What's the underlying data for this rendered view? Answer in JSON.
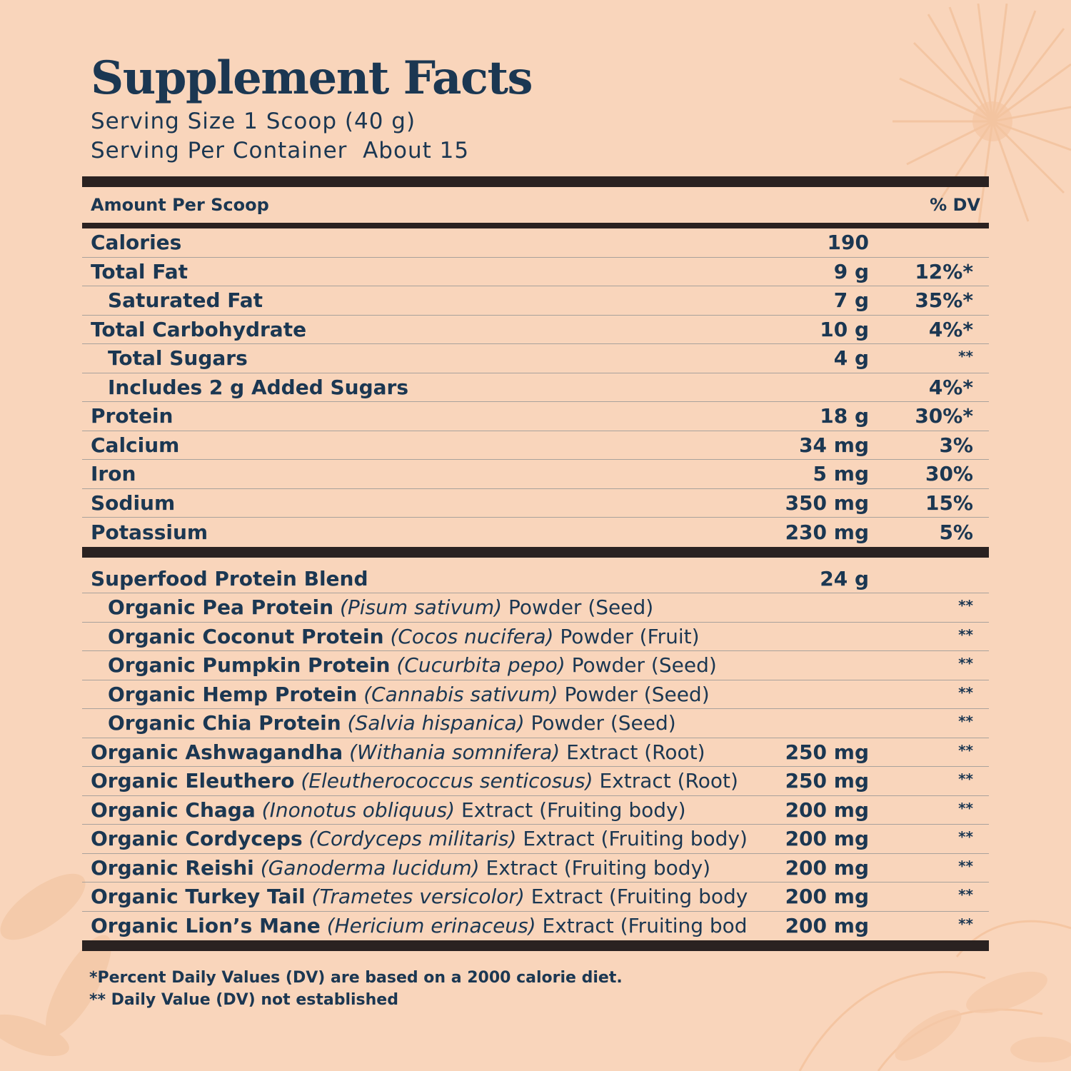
{
  "title": "Supplement Facts",
  "serving_size": "Serving Size 1 Scoop (40 g)",
  "servings_per_container": "Serving Per Container  About 15",
  "header": {
    "amount_label": "Amount Per Scoop",
    "dv_label": "% DV"
  },
  "nutrients": [
    {
      "name": "Calories",
      "amount": "190",
      "dv": ""
    },
    {
      "name": "Total Fat",
      "amount": "9 g",
      "dv": "12%*"
    },
    {
      "name": "Saturated Fat",
      "amount": "7 g",
      "dv": "35%*"
    },
    {
      "name": "Total Carbohydrate",
      "amount": "10 g",
      "dv": "4%*"
    },
    {
      "name": "Total Sugars",
      "amount": "4 g",
      "dv": "**"
    },
    {
      "name": "Includes 2 g Added Sugars",
      "amount": "",
      "dv": "4%*"
    },
    {
      "name": "Protein",
      "amount": "18 g",
      "dv": "30%*"
    },
    {
      "name": "Calcium",
      "amount": "34 mg",
      "dv": "3%"
    },
    {
      "name": "Iron",
      "amount": "5 mg",
      "dv": "30%"
    },
    {
      "name": "Sodium",
      "amount": "350 mg",
      "dv": "15%"
    },
    {
      "name": "Potassium",
      "amount": "230 mg",
      "dv": "5%"
    }
  ],
  "blend": [
    {
      "name": "Superfood Protein Blend",
      "latin": "",
      "form": "",
      "amount": "24 g",
      "dv": ""
    },
    {
      "name": "Organic Pea Protein",
      "latin": "(Pisum sativum)",
      "form": "Powder (Seed)",
      "amount": "",
      "dv": "**"
    },
    {
      "name": "Organic Coconut Protein",
      "latin": "(Cocos nucifera)",
      "form": "Powder (Fruit)",
      "amount": "",
      "dv": "**"
    },
    {
      "name": "Organic Pumpkin Protein",
      "latin": "(Cucurbita pepo)",
      "form": "Powder (Seed)",
      "amount": "",
      "dv": "**"
    },
    {
      "name": "Organic Hemp Protein",
      "latin": "(Cannabis sativum)",
      "form": "Powder (Seed)",
      "amount": "",
      "dv": "**"
    },
    {
      "name": "Organic Chia Protein",
      "latin": "(Salvia hispanica)",
      "form": "Powder (Seed)",
      "amount": "",
      "dv": "**"
    },
    {
      "name": "Organic Ashwagandha",
      "latin": "(Withania somnifera)",
      "form": "Extract (Root)",
      "amount": "250 mg",
      "dv": "**"
    },
    {
      "name": "Organic Eleuthero",
      "latin": "(Eleutherococcus senticosus)",
      "form": "Extract (Root)",
      "amount": "250 mg",
      "dv": "**"
    },
    {
      "name": "Organic Chaga",
      "latin": "(Inonotus obliquus)",
      "form": "Extract (Fruiting body)",
      "amount": "200 mg",
      "dv": "**"
    },
    {
      "name": "Organic Cordyceps",
      "latin": "(Cordyceps militaris)",
      "form": "Extract (Fruiting body)",
      "amount": "200 mg",
      "dv": "**"
    },
    {
      "name": "Organic Reishi",
      "latin": "(Ganoderma lucidum)",
      "form": "Extract (Fruiting body)",
      "amount": "200 mg",
      "dv": "**"
    },
    {
      "name": "Organic Turkey Tail",
      "latin": "(Trametes versicolor)",
      "form": "Extract (Fruiting body)",
      "amount": "200 mg",
      "dv": "**"
    },
    {
      "name": "Organic Lion’s Mane",
      "latin": "(Hericium erinaceus)",
      "form": "Extract (Fruiting body)",
      "amount": "200 mg",
      "dv": "**"
    }
  ],
  "footnotes": {
    "percent_dv": "*Percent Daily Values (DV) are based on a 2000 calorie diet.",
    "not_established": "** Daily Value (DV) not established"
  },
  "colors": {
    "background": "#f9d5bb",
    "text": "#1b3752",
    "rule": "#2a2221",
    "decor": "#f4c29c"
  }
}
